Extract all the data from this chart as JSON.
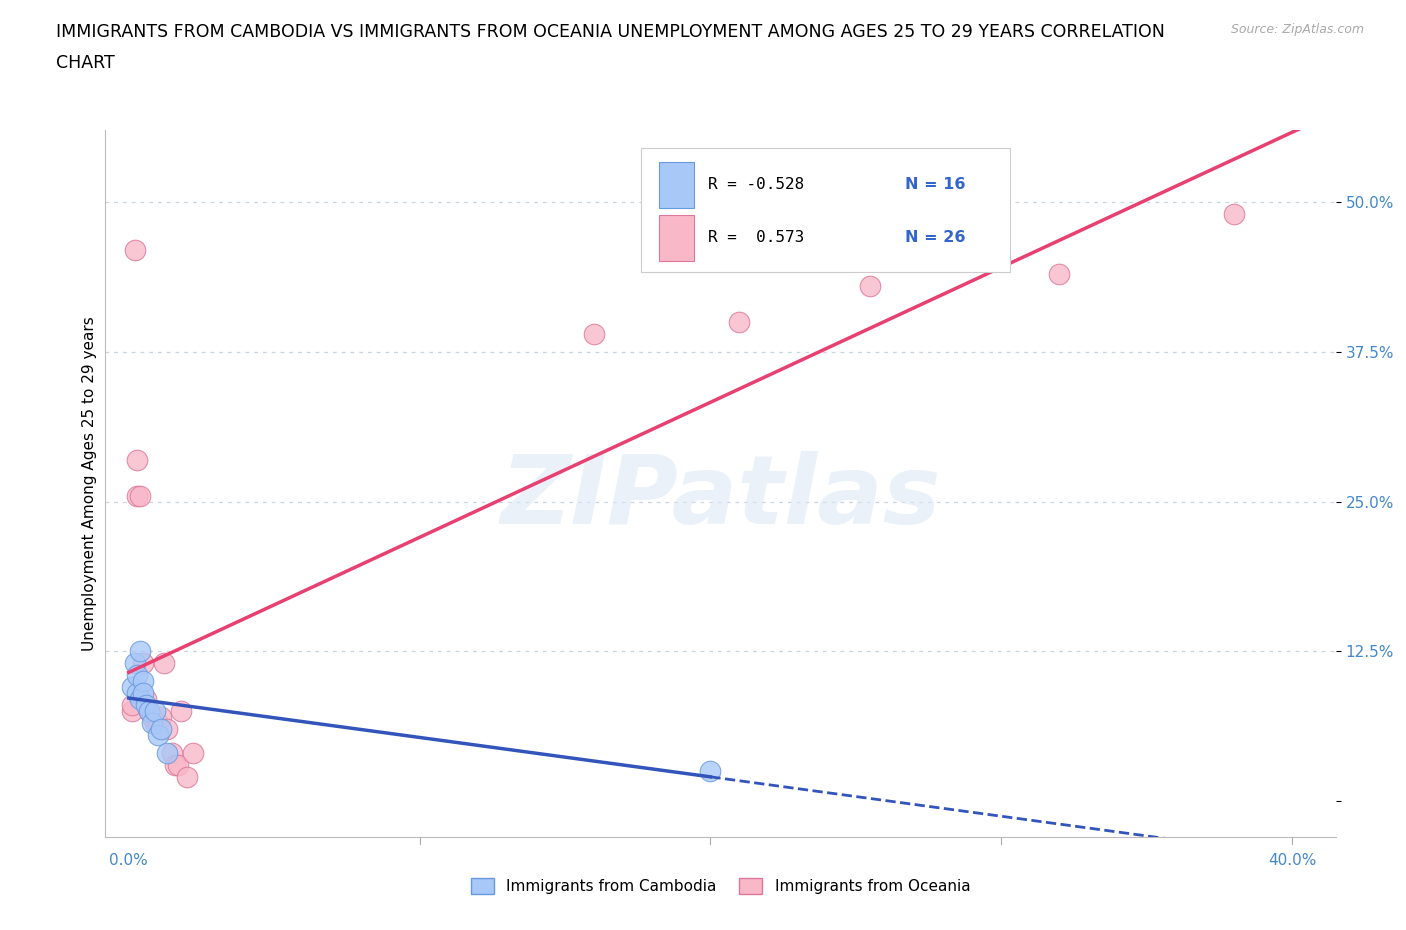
{
  "title_line1": "IMMIGRANTS FROM CAMBODIA VS IMMIGRANTS FROM OCEANIA UNEMPLOYMENT AMONG AGES 25 TO 29 YEARS CORRELATION",
  "title_line2": "CHART",
  "source": "Source: ZipAtlas.com",
  "ylabel": "Unemployment Among Ages 25 to 29 years",
  "xlim": [
    -0.008,
    0.415
  ],
  "ylim": [
    -0.03,
    0.56
  ],
  "ytick_vals": [
    0.0,
    0.125,
    0.25,
    0.375,
    0.5
  ],
  "ytick_labels": [
    "",
    "12.5%",
    "25.0%",
    "37.5%",
    "50.0%"
  ],
  "watermark": "ZIPatlas",
  "cambodia_x": [
    0.001,
    0.002,
    0.003,
    0.003,
    0.004,
    0.004,
    0.005,
    0.005,
    0.006,
    0.007,
    0.008,
    0.009,
    0.01,
    0.011,
    0.013,
    0.2
  ],
  "cambodia_y": [
    0.095,
    0.115,
    0.09,
    0.105,
    0.125,
    0.085,
    0.1,
    0.09,
    0.08,
    0.075,
    0.065,
    0.075,
    0.055,
    0.06,
    0.04,
    0.025
  ],
  "oceania_x": [
    0.001,
    0.001,
    0.002,
    0.003,
    0.003,
    0.004,
    0.005,
    0.006,
    0.007,
    0.008,
    0.009,
    0.01,
    0.011,
    0.012,
    0.013,
    0.015,
    0.016,
    0.017,
    0.018,
    0.02,
    0.022,
    0.16,
    0.21,
    0.255,
    0.32,
    0.38
  ],
  "oceania_y": [
    0.075,
    0.08,
    0.46,
    0.285,
    0.255,
    0.255,
    0.115,
    0.085,
    0.075,
    0.07,
    0.065,
    0.065,
    0.07,
    0.115,
    0.06,
    0.04,
    0.03,
    0.03,
    0.075,
    0.02,
    0.04,
    0.39,
    0.4,
    0.43,
    0.44,
    0.49
  ],
  "cambodia_color": "#a8c8f8",
  "cambodia_edge": "#6699dd",
  "oceania_color": "#f8b8c8",
  "oceania_edge": "#dd7799",
  "trend_cambodia_color": "#3355bb",
  "trend_oceania_color": "#e84070",
  "legend_R_cambodia": "R = -0.528",
  "legend_N_cambodia": "N = 16",
  "legend_R_oceania": "R =  0.573",
  "legend_N_oceania": "N = 26",
  "background_color": "#ffffff",
  "grid_color": "#c8d4e4",
  "title_fontsize": 12.5,
  "label_fontsize": 11,
  "tick_fontsize": 11,
  "tick_color": "#4488cc"
}
